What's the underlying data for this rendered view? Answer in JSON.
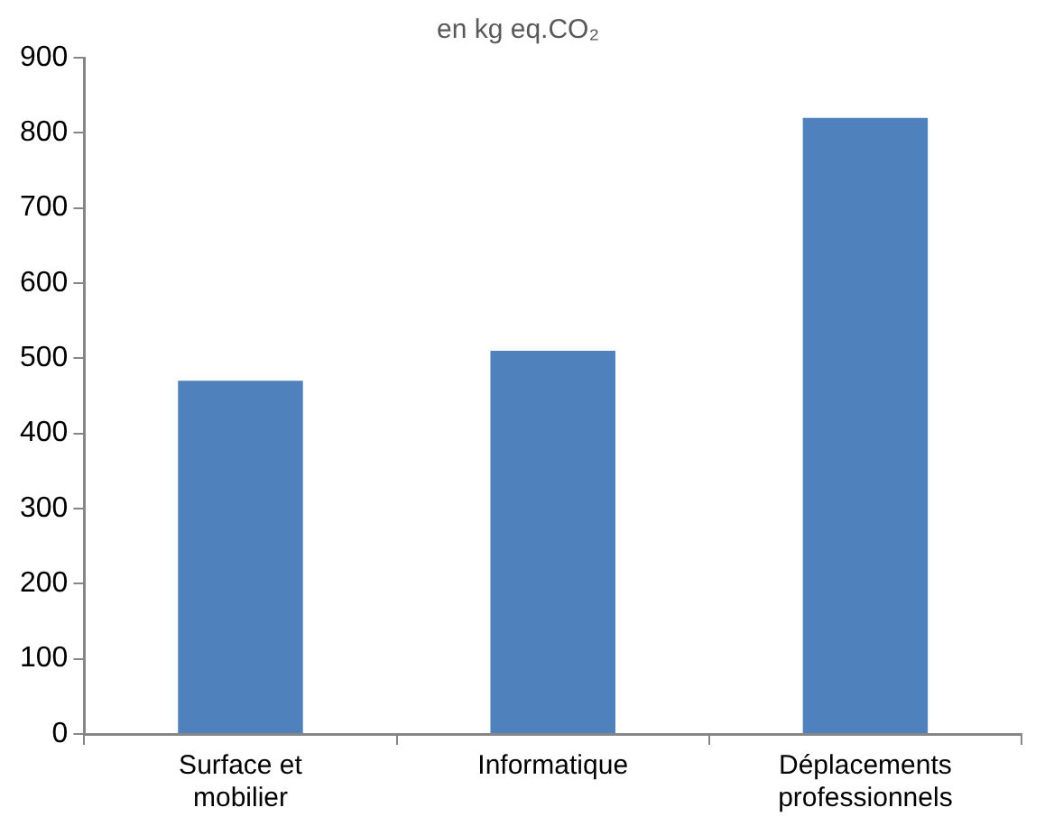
{
  "chart_data": {
    "type": "bar",
    "title": "en kg eq.CO₂",
    "categories": [
      "Surface et mobilier",
      "Informatique",
      "Déplacements professionnels"
    ],
    "values": [
      470,
      510,
      820
    ],
    "color": "#4f81bd",
    "ylim": [
      0,
      900
    ],
    "yticks": [
      0,
      100,
      200,
      300,
      400,
      500,
      600,
      700,
      800,
      900
    ],
    "grid": false,
    "legend": false
  }
}
